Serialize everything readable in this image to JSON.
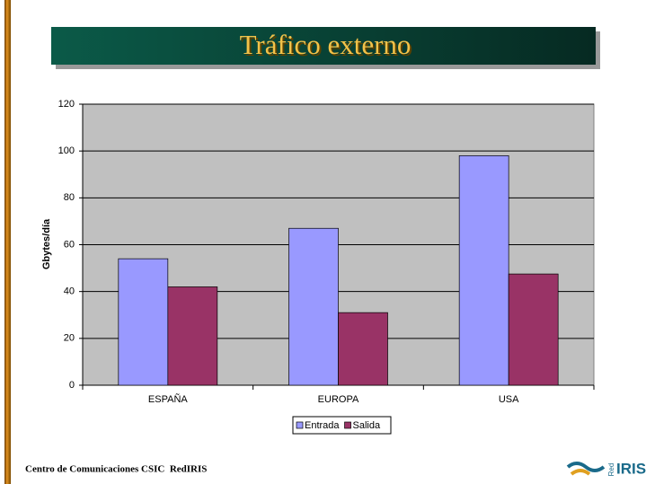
{
  "chart_data": {
    "type": "bar",
    "title": "Tráfico externo",
    "y_label": "Gbytes/día",
    "categories": [
      "ESPAÑA",
      "EUROPA",
      "USA"
    ],
    "series": [
      {
        "name": "Entrada",
        "color": "#9999ff",
        "values": [
          54,
          67,
          98
        ]
      },
      {
        "name": "Salida",
        "color": "#993366",
        "values": [
          42,
          31,
          47.5
        ]
      }
    ],
    "ylim": [
      0,
      120
    ],
    "yticks": [
      0,
      20,
      40,
      60,
      80,
      100,
      120
    ],
    "grid": true,
    "legend": "bottom",
    "plot_background": "#c0c0c0"
  },
  "footer": {
    "text": "Centro de Comunicaciones CSIC  RedIRIS"
  },
  "logo": {
    "red": "Red",
    "iris": "IRIS"
  }
}
